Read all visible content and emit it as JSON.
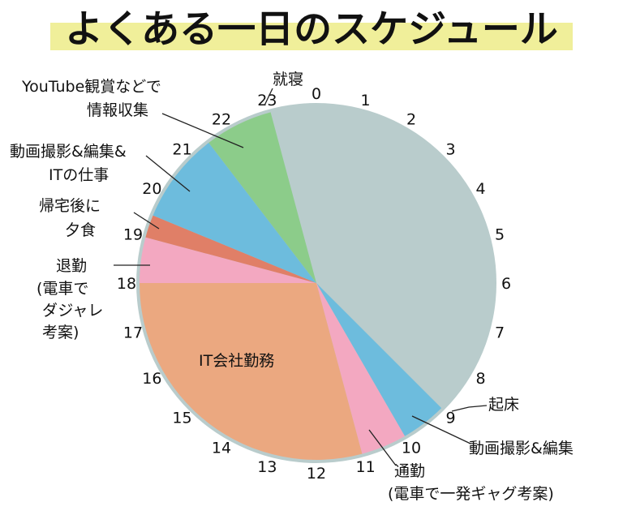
{
  "chart_data": {
    "type": "pie",
    "title": "よくある一日のスケジュール",
    "unit": "hours",
    "start_hour": 23,
    "hour_labels": [
      "0",
      "1",
      "2",
      "3",
      "4",
      "5",
      "6",
      "7",
      "8",
      "9",
      "10",
      "11",
      "12",
      "13",
      "14",
      "15",
      "16",
      "17",
      "18",
      "19",
      "20",
      "21",
      "22",
      "23"
    ],
    "slices": [
      {
        "label": "就寝",
        "start": 23,
        "end": 33,
        "hours": 10,
        "color": "#b9cccc"
      },
      {
        "label": "動画撮影&編集",
        "start": 33,
        "end": 34,
        "hours": 1,
        "color": "#6dbcdd"
      },
      {
        "label": "通勤(電車で一発ギャグ考案)",
        "start": 34,
        "end": 35,
        "hours": 1,
        "color": "#f3a8c1"
      },
      {
        "label": "IT会社勤務",
        "start": 35,
        "end": 42,
        "hours": 7,
        "color": "#eba880"
      },
      {
        "label": "退勤(電車でダジャレ考案)",
        "start": 42,
        "end": 43,
        "hours": 1,
        "color": "#f3a8c1"
      },
      {
        "label": "帰宅後に夕食",
        "start": 43,
        "end": 43.5,
        "hours": 0.5,
        "color": "#e07f67"
      },
      {
        "label": "動画撮影&編集&ITの仕事",
        "start": 43.5,
        "end": 45.5,
        "hours": 2,
        "color": "#6dbcdd"
      },
      {
        "label": "YouTube観賞などで情報収集",
        "start": 45.5,
        "end": 47,
        "hours": 1.5,
        "color": "#8ccc8a"
      }
    ],
    "annotations": {
      "kishou": "起床",
      "shuushin": "就寝",
      "youtube": [
        "YouTube観賞などで",
        "情報収集"
      ],
      "douga_it": [
        "動画撮影&編集&",
        "ITの仕事"
      ],
      "kitaku": [
        "帰宅後に",
        "夕食"
      ],
      "taikin": [
        "退勤",
        "(電車で",
        "ダジャレ",
        "考案)"
      ],
      "it_kaisha": "IT会社勤務",
      "douga": "動画撮影&編集",
      "tsuukin": [
        "通勤",
        "(電車で一発ギャグ考案)"
      ]
    }
  },
  "colors": {
    "ring": "#b9cccc",
    "title_band": "#f0ef9a"
  }
}
